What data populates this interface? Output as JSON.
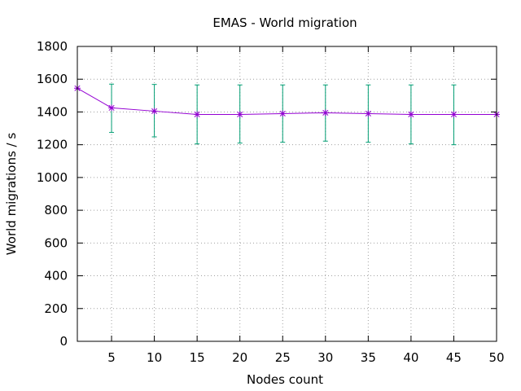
{
  "chart_data": {
    "type": "line",
    "title": "EMAS - World migration",
    "xlabel": "Nodes count",
    "ylabel": "World migrations / s",
    "xlim": [
      1,
      50
    ],
    "ylim": [
      0,
      1800
    ],
    "xticks": [
      5,
      10,
      15,
      20,
      25,
      30,
      35,
      40,
      45,
      50
    ],
    "yticks": [
      0,
      200,
      400,
      600,
      800,
      1000,
      1200,
      1400,
      1600,
      1800
    ],
    "grid": true,
    "legend": "none",
    "series": [
      {
        "color": "#9400d3",
        "marker": "asterisk",
        "errorbar_color": "#009e73",
        "points": [
          {
            "x": 1,
            "y": 1545,
            "low": null,
            "high": null
          },
          {
            "x": 5,
            "y": 1425,
            "low": 1275,
            "high": 1570
          },
          {
            "x": 10,
            "y": 1405,
            "low": 1248,
            "high": 1568
          },
          {
            "x": 15,
            "y": 1385,
            "low": 1205,
            "high": 1565
          },
          {
            "x": 20,
            "y": 1385,
            "low": 1210,
            "high": 1565
          },
          {
            "x": 25,
            "y": 1390,
            "low": 1215,
            "high": 1565
          },
          {
            "x": 30,
            "y": 1395,
            "low": 1222,
            "high": 1565
          },
          {
            "x": 35,
            "y": 1390,
            "low": 1215,
            "high": 1565
          },
          {
            "x": 40,
            "y": 1385,
            "low": 1205,
            "high": 1565
          },
          {
            "x": 45,
            "y": 1385,
            "low": 1200,
            "high": 1565
          },
          {
            "x": 50,
            "y": 1385,
            "low": null,
            "high": null
          }
        ]
      }
    ]
  }
}
